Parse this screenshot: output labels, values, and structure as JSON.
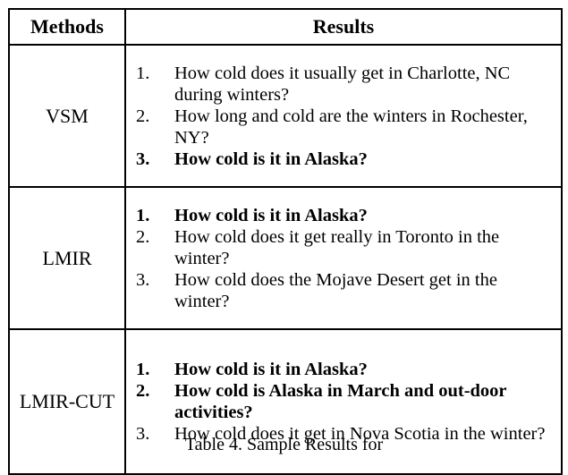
{
  "table": {
    "headers": {
      "methods": "Methods",
      "results": "Results"
    },
    "rows": [
      {
        "method": "VSM",
        "results": [
          {
            "num": "1.",
            "text": "How cold does it usually get in Charlotte, NC during winters?",
            "bold": false
          },
          {
            "num": "2.",
            "text": "How long and cold are the winters in Rochester, NY?",
            "bold": false
          },
          {
            "num": "3.",
            "text": "How cold is it in Alaska?",
            "bold": true
          }
        ]
      },
      {
        "method": "LMIR",
        "results": [
          {
            "num": "1.",
            "text": "How cold is it in Alaska?",
            "bold": true
          },
          {
            "num": "2.",
            "text": "How cold does it get really in Toronto in the winter?",
            "bold": false
          },
          {
            "num": "3.",
            "text": "How cold does the Mojave Desert get in the winter?",
            "bold": false
          }
        ]
      },
      {
        "method": "LMIR-CUT",
        "results": [
          {
            "num": "1.",
            "text": "How cold is it in Alaska?",
            "bold": true
          },
          {
            "num": "2.",
            "text": "How cold is Alaska in March and out-door activities?",
            "bold": true
          },
          {
            "num": "3.",
            "text": "How cold does it get in Nova Scotia in the winter?",
            "bold": false
          }
        ]
      }
    ]
  },
  "caption": "Table 4. Sample Results for"
}
